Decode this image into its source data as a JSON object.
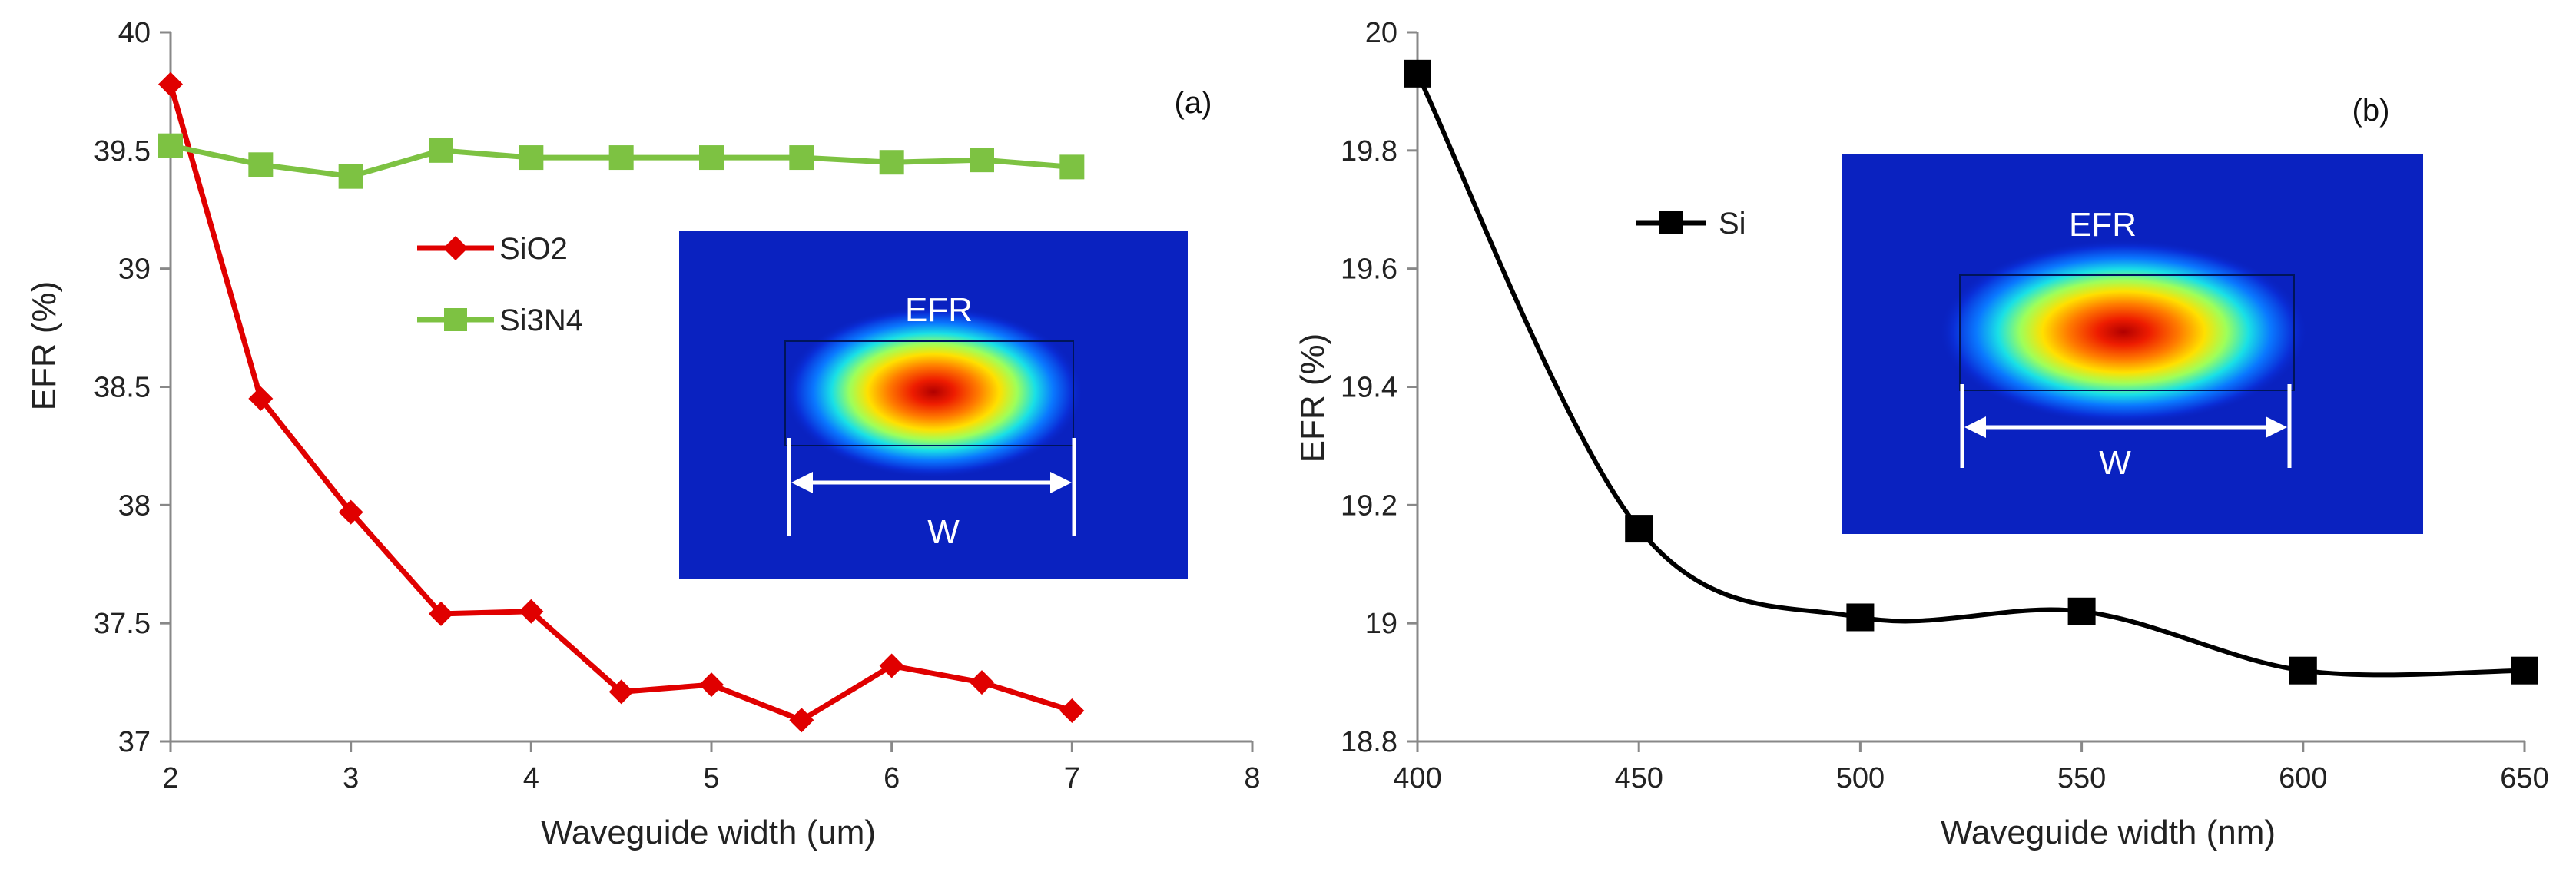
{
  "chart_data": [
    {
      "type": "line",
      "panel_label": "(a)",
      "title": "",
      "xlabel": "Waveguide width (um)",
      "ylabel": "EFR (%)",
      "xlim": [
        2,
        8
      ],
      "ylim": [
        37,
        40
      ],
      "xticks": [
        "2",
        "3",
        "4",
        "5",
        "6",
        "7",
        "8"
      ],
      "yticks": [
        "37",
        "37.5",
        "38",
        "38.5",
        "39",
        "39.5",
        "40"
      ],
      "grid": false,
      "legend_position": "middle-left",
      "series": [
        {
          "name": "SiO2",
          "color": "#e00000",
          "marker": "diamond",
          "x": [
            2,
            2.5,
            3,
            3.5,
            4,
            4.5,
            5,
            5.5,
            6,
            6.5,
            7
          ],
          "y": [
            39.78,
            38.45,
            37.97,
            37.54,
            37.55,
            37.21,
            37.24,
            37.09,
            37.32,
            37.25,
            37.13
          ]
        },
        {
          "name": "Si3N4",
          "color": "#7dc242",
          "marker": "square",
          "x": [
            2,
            2.5,
            3,
            3.5,
            4,
            4.5,
            5,
            5.5,
            6,
            6.5,
            7
          ],
          "y": [
            39.52,
            39.44,
            39.39,
            39.5,
            39.47,
            39.47,
            39.47,
            39.47,
            39.45,
            39.46,
            39.43
          ]
        }
      ],
      "inset": {
        "label": "EFR",
        "dimension_label": "W"
      }
    },
    {
      "type": "line",
      "panel_label": "(b)",
      "title": "",
      "xlabel": "Waveguide width (nm)",
      "ylabel": "EFR (%)",
      "xlim": [
        400,
        650
      ],
      "ylim": [
        18.8,
        20
      ],
      "xticks": [
        "400",
        "450",
        "500",
        "550",
        "600",
        "650"
      ],
      "yticks": [
        "18.8",
        "19",
        "19.2",
        "19.4",
        "19.6",
        "19.8",
        "20"
      ],
      "grid": false,
      "legend_position": "upper-left",
      "series": [
        {
          "name": "Si",
          "color": "#000000",
          "marker": "square",
          "x": [
            400,
            450,
            500,
            550,
            600,
            650
          ],
          "y": [
            19.93,
            19.16,
            19.01,
            19.02,
            18.92,
            18.92
          ]
        }
      ],
      "inset": {
        "label": "EFR",
        "dimension_label": "W"
      }
    }
  ]
}
